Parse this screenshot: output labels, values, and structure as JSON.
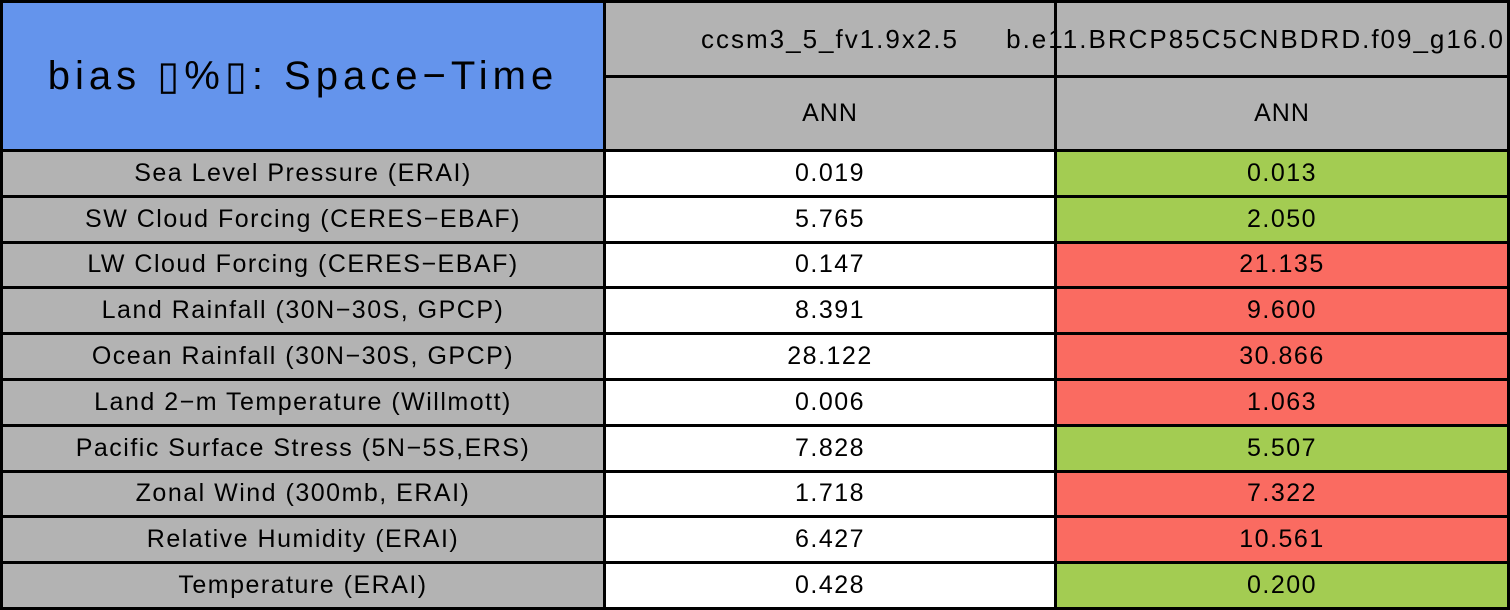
{
  "colors": {
    "title_bg": "#6494EC",
    "header_bg": "#B3B3B3",
    "label_bg": "#B3B3B3",
    "better_green": "#A3CC52",
    "worse_red": "#FA6B61",
    "neutral_white": "#FFFFFF",
    "grid_lines": "#000000"
  },
  "chart_data": {
    "type": "table",
    "title": "bias ▯%▯: Space−Time",
    "columns": [
      {
        "model": "ccsm3_5_fv1.9x2.5",
        "season": "ANN"
      },
      {
        "model": "b.e11.BRCP85C5CNBDRD.f09_g16.0",
        "season": "ANN"
      }
    ],
    "rows": [
      {
        "label": "Sea Level Pressure (ERAI)",
        "col1": "0.019",
        "col2": "0.013",
        "col2_status": "green"
      },
      {
        "label": "SW Cloud Forcing (CERES−EBAF)",
        "col1": "5.765",
        "col2": "2.050",
        "col2_status": "green"
      },
      {
        "label": "LW Cloud Forcing (CERES−EBAF)",
        "col1": "0.147",
        "col2": "21.135",
        "col2_status": "red"
      },
      {
        "label": "Land Rainfall (30N−30S, GPCP)",
        "col1": "8.391",
        "col2": "9.600",
        "col2_status": "red"
      },
      {
        "label": "Ocean Rainfall (30N−30S, GPCP)",
        "col1": "28.122",
        "col2": "30.866",
        "col2_status": "red"
      },
      {
        "label": "Land 2−m Temperature (Willmott)",
        "col1": "0.006",
        "col2": "1.063",
        "col2_status": "red"
      },
      {
        "label": "Pacific Surface Stress (5N−5S,ERS)",
        "col1": "7.828",
        "col2": "5.507",
        "col2_status": "green"
      },
      {
        "label": "Zonal Wind (300mb, ERAI)",
        "col1": "1.718",
        "col2": "7.322",
        "col2_status": "red"
      },
      {
        "label": "Relative Humidity (ERAI)",
        "col1": "6.427",
        "col2": "10.561",
        "col2_status": "red"
      },
      {
        "label": "Temperature (ERAI)",
        "col1": "0.428",
        "col2": "0.200",
        "col2_status": "green"
      }
    ]
  }
}
